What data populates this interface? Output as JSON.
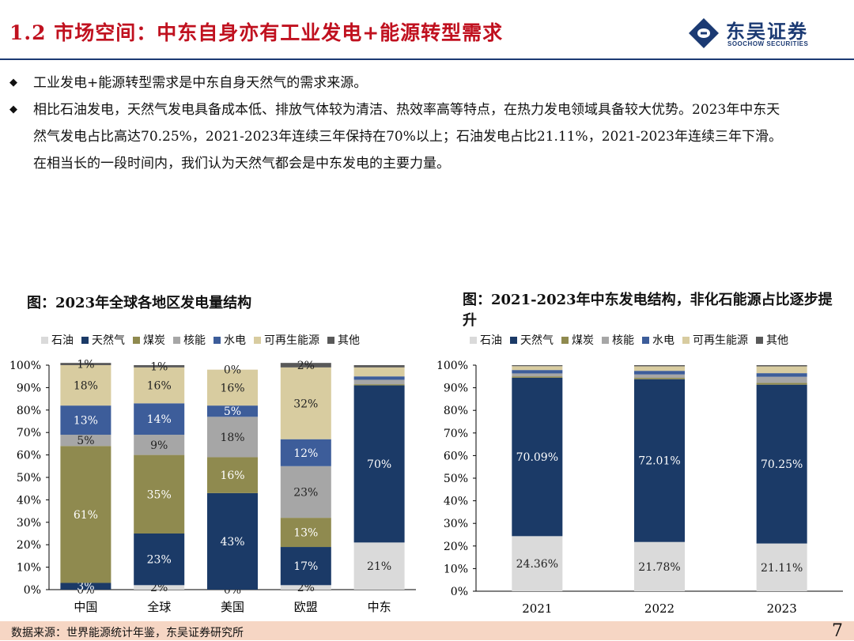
{
  "header": {
    "title": "1.2 市场空间：中东自身亦有工业发电+能源转型需求",
    "logo_cn": "东吴证券",
    "logo_en": "SOOCHOW SECURITIES"
  },
  "bullets": [
    "工业发电+能源转型需求是中东自身天然气的需求来源。",
    "相比石油发电，天然气发电具备成本低、排放气体较为清洁、热效率高等特点，在热力发电领域具备较大优势。2023年中东天然气发电占比高达70.25%，2021-2023年连续三年保持在70%以上；石油发电占比21.11%，2021-2023年连续三年下滑。在相当长的一段时间内，我们认为天然气都会是中东发电的主要力量。"
  ],
  "footer": {
    "source": "数据来源：世界能源统计年鉴，东吴证券研究所",
    "page": "7"
  },
  "colors": {
    "石油": "#dadada",
    "天然气": "#1b3a67",
    "煤炭": "#8f8a4f",
    "核能": "#a6a6a6",
    "水电": "#3d5d9a",
    "可再生能源": "#d8ccA0",
    "其他": "#595959"
  },
  "chart_data": [
    {
      "type": "bar",
      "stacked": true,
      "title": "图：2023年全球各地区发电量结构",
      "categories": [
        "中国",
        "全球",
        "美国",
        "欧盟",
        "中东"
      ],
      "ylim": [
        0,
        100
      ],
      "yticks": [
        "0%",
        "10%",
        "20%",
        "30%",
        "40%",
        "50%",
        "60%",
        "70%",
        "80%",
        "90%",
        "100%"
      ],
      "series": [
        {
          "name": "石油",
          "values": [
            0,
            2,
            0,
            2,
            21
          ],
          "labels": [
            "0%",
            "2%",
            "0%",
            "2%",
            "21%"
          ]
        },
        {
          "name": "天然气",
          "values": [
            3,
            23,
            43,
            17,
            70
          ],
          "labels": [
            "3%",
            "23%",
            "43%",
            "17%",
            "70%"
          ]
        },
        {
          "name": "煤炭",
          "values": [
            61,
            35,
            16,
            13,
            0.5
          ],
          "labels": [
            "61%",
            "35%",
            "16%",
            "13%",
            ""
          ]
        },
        {
          "name": "核能",
          "values": [
            5,
            9,
            18,
            23,
            2
          ],
          "labels": [
            "5%",
            "9%",
            "18%",
            "23%",
            ""
          ]
        },
        {
          "name": "水电",
          "values": [
            13,
            14,
            5,
            12,
            1.5
          ],
          "labels": [
            "13%",
            "14%",
            "5%",
            "12%",
            ""
          ]
        },
        {
          "name": "可再生能源",
          "values": [
            18,
            16,
            16,
            32,
            4
          ],
          "labels": [
            "18%",
            "16%",
            "16%",
            "32%",
            ""
          ]
        },
        {
          "name": "其他",
          "values": [
            1,
            1,
            0,
            2,
            1
          ],
          "labels": [
            "1%",
            "1%",
            "0%",
            "2%",
            ""
          ]
        }
      ]
    },
    {
      "type": "bar",
      "stacked": true,
      "title": "图：2021-2023年中东发电结构，非化石能源占比逐步提升",
      "categories": [
        "2021",
        "2022",
        "2023"
      ],
      "ylim": [
        0,
        100
      ],
      "yticks": [
        "0%",
        "10%",
        "20%",
        "30%",
        "40%",
        "50%",
        "60%",
        "70%",
        "80%",
        "90%",
        "100%"
      ],
      "series": [
        {
          "name": "石油",
          "values": [
            24.36,
            21.78,
            21.11
          ],
          "labels": [
            "24.36%",
            "21.78%",
            "21.11%"
          ]
        },
        {
          "name": "天然气",
          "values": [
            70.09,
            72.01,
            70.25
          ],
          "labels": [
            "70.09%",
            "72.01%",
            "70.25%"
          ]
        },
        {
          "name": "煤炭",
          "values": [
            0.6,
            0.6,
            0.8
          ],
          "labels": [
            "",
            "",
            ""
          ]
        },
        {
          "name": "核能",
          "values": [
            1.3,
            1.5,
            2.7
          ],
          "labels": [
            "",
            "",
            ""
          ]
        },
        {
          "name": "水电",
          "values": [
            1.5,
            1.6,
            1.6
          ],
          "labels": [
            "",
            "",
            ""
          ]
        },
        {
          "name": "可再生能源",
          "values": [
            1.7,
            2.0,
            3.0
          ],
          "labels": [
            "",
            "",
            ""
          ]
        },
        {
          "name": "其他",
          "values": [
            0.44,
            0.51,
            0.54
          ],
          "labels": [
            "",
            "",
            ""
          ]
        }
      ]
    }
  ]
}
